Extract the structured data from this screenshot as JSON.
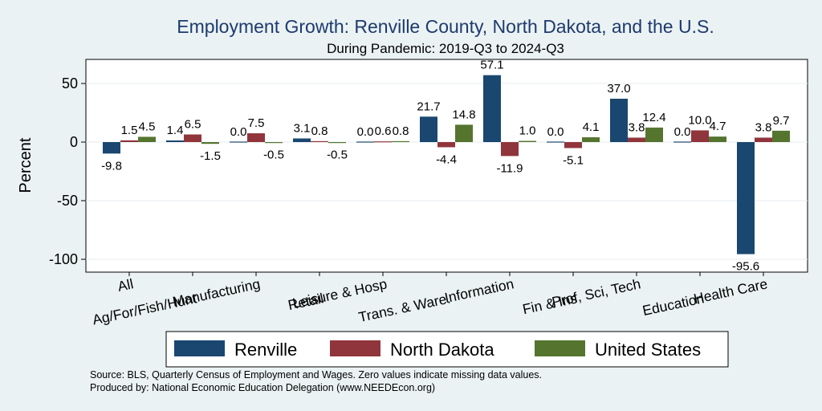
{
  "chart_data": {
    "type": "bar",
    "title": "Employment Growth: Renville County, North Dakota, and the U.S.",
    "subtitle": "During Pandemic: 2019-Q3 to 2024-Q3",
    "ylabel": "Percent",
    "xlabel": "",
    "ylim": [
      -105,
      72
    ],
    "yticks": [
      50,
      0,
      -50,
      -100
    ],
    "grid": true,
    "legend_position": "bottom",
    "categories": [
      "All",
      "Ag/For/Fish/Hunt",
      "Manufacturing",
      "Retail",
      "Leisure & Hosp",
      "Trans. & Ware.",
      "Information",
      "Fin & Ins",
      "Prof, Sci, Tech",
      "Education",
      "Health Care"
    ],
    "series": [
      {
        "name": "Renville",
        "color": "#1a476f",
        "values": [
          -9.8,
          1.4,
          0.0,
          3.1,
          0.0,
          21.7,
          57.1,
          0.0,
          37.0,
          0.0,
          -95.6
        ],
        "labels": [
          "-9.8",
          "1.4",
          "0.0",
          "3.1",
          "0.0",
          "21.7",
          "57.1",
          "0.0",
          "37.0",
          "0.0",
          "-95.6"
        ]
      },
      {
        "name": "North Dakota",
        "color": "#90353b",
        "values": [
          1.5,
          6.5,
          7.5,
          0.8,
          0.6,
          -4.4,
          -11.9,
          -5.1,
          3.8,
          10.0,
          3.8
        ],
        "labels": [
          "1.5",
          "6.5",
          "7.5",
          "0.8",
          "0.6",
          "-4.4",
          "-11.9",
          "-5.1",
          "3.8",
          "10.0",
          "3.8"
        ]
      },
      {
        "name": "United States",
        "color": "#55752f",
        "values": [
          4.5,
          -1.5,
          -0.5,
          -0.5,
          0.8,
          14.8,
          1.0,
          4.1,
          12.4,
          4.7,
          9.7
        ],
        "labels": [
          "4.5",
          "-1.5",
          "-0.5",
          "-0.5",
          "0.8",
          "14.8",
          "1.0",
          "4.1",
          "12.4",
          "4.7",
          "9.7"
        ]
      }
    ],
    "notes": [
      "Source: BLS, Quarterly Census of Employment and Wages. Zero values indicate missing data values.",
      "Produced by: National Economic Education Delegation (www.NEEDEcon.org)"
    ]
  }
}
